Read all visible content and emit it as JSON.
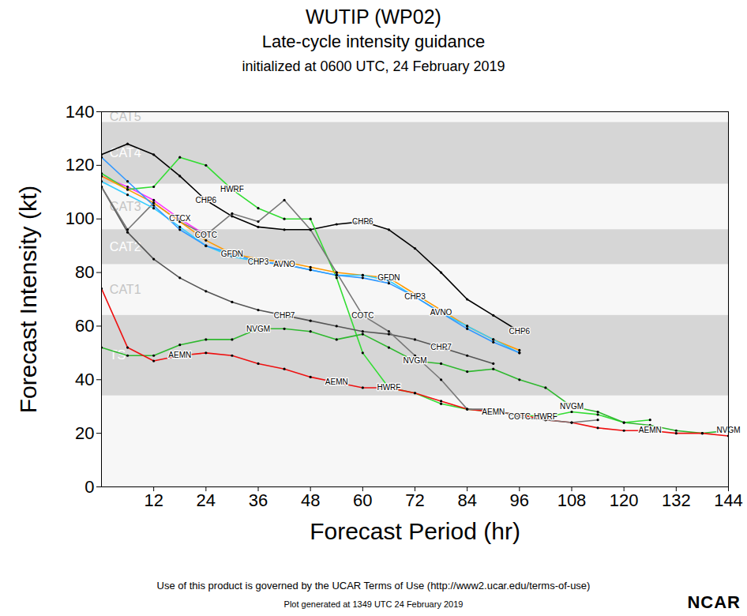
{
  "chart_data": {
    "type": "line",
    "title": "WUTIP (WP02)",
    "subtitle": "Late-cycle intensity guidance",
    "initialization": "initialized at 0600 UTC, 24 February 2019",
    "footer": [
      "Use of this product is governed by the UCAR Terms of Use (http://www2.ucar.edu/terms-of-use)",
      "Plot generated at 1349 UTC  24 February 2019"
    ],
    "logo": "NCAR",
    "x_label": "Forecast Period (hr)",
    "y_label": "Forecast Intensity (kt)",
    "xlim": [
      0,
      144
    ],
    "xticks": [
      12,
      24,
      36,
      48,
      60,
      72,
      84,
      96,
      108,
      120,
      132,
      144
    ],
    "ylim": [
      0,
      140
    ],
    "yticks": [
      0,
      20,
      40,
      60,
      80,
      100,
      120,
      140
    ],
    "grid": false,
    "marker": "dot",
    "bands": [
      {
        "label": "TS",
        "from": 34,
        "to": 64,
        "shaded": true
      },
      {
        "label": "CAT1",
        "from": 64,
        "to": 83,
        "shaded": false
      },
      {
        "label": "CAT2",
        "from": 83,
        "to": 96,
        "shaded": true
      },
      {
        "label": "CAT3",
        "from": 96,
        "to": 113,
        "shaded": false
      },
      {
        "label": "CAT4",
        "from": 113,
        "to": 136,
        "shaded": true
      },
      {
        "label": "CAT5",
        "from": 136,
        "to": 140,
        "shaded": false
      }
    ],
    "x": [
      0,
      6,
      12,
      18,
      24,
      30,
      36,
      42,
      48,
      54,
      60,
      66,
      72,
      78,
      84,
      90,
      96,
      102,
      108,
      114,
      120,
      126,
      132,
      138,
      144
    ],
    "series": [
      {
        "name": "CTCX",
        "color": "#ff33ff",
        "values": [
          116,
          112,
          107,
          100,
          94,
          null,
          null,
          null,
          null,
          null,
          null,
          null,
          null,
          null,
          null,
          null,
          null,
          null,
          null,
          null,
          null,
          null,
          null,
          null,
          null
        ]
      },
      {
        "name": "CHP6",
        "color": "#000000",
        "values": [
          124,
          128,
          124,
          116,
          107,
          101,
          97,
          96,
          96,
          98,
          99,
          96,
          89,
          80,
          70,
          64,
          58,
          null,
          null,
          null,
          null,
          null,
          null,
          null,
          null
        ]
      },
      {
        "name": "HWRF",
        "color": "#33dd33",
        "values": [
          117,
          111,
          112,
          123,
          120,
          111,
          104,
          100,
          100,
          78,
          50,
          37,
          35,
          31,
          29,
          28,
          27,
          26,
          28,
          27,
          24,
          25,
          null,
          null,
          null
        ]
      },
      {
        "name": "NVGM",
        "color": "#2fb82f",
        "values": [
          52,
          49,
          49,
          53,
          55,
          55,
          59,
          59,
          58,
          55,
          57,
          52,
          47,
          46,
          43,
          44,
          40,
          37,
          30,
          28,
          24,
          23,
          21,
          20,
          21
        ]
      },
      {
        "name": "CHP7",
        "color": "#555555",
        "values": [
          112,
          95,
          85,
          78,
          73,
          69,
          66,
          64,
          62,
          60,
          58,
          57,
          55,
          52,
          49,
          46,
          null,
          null,
          null,
          null,
          null,
          null,
          null,
          null,
          null
        ]
      },
      {
        "name": "AEMN",
        "color": "#ee1111",
        "values": [
          74,
          52,
          47,
          49,
          50,
          49,
          46,
          44,
          41,
          39,
          37,
          37,
          35,
          32,
          29,
          28,
          27,
          25,
          24,
          22,
          21,
          21,
          20,
          20,
          19
        ]
      },
      {
        "name": "COTC",
        "color": "#777777",
        "values": [
          112,
          96,
          106,
          99,
          94,
          102,
          99,
          107,
          96,
          80,
          64,
          58,
          49,
          40,
          29,
          29,
          26,
          25,
          24,
          25,
          null,
          null,
          null,
          null,
          null
        ]
      },
      {
        "name": "GFDN",
        "color": "#ff9900",
        "values": [
          116,
          111,
          106,
          99,
          92,
          87,
          85,
          84,
          82,
          80,
          79,
          78,
          72,
          66,
          60,
          55,
          51,
          null,
          null,
          null,
          null,
          null,
          null,
          null,
          null
        ]
      },
      {
        "name": "CHP3",
        "color": "#33ccff",
        "values": [
          114,
          109,
          104,
          97,
          90,
          86,
          84,
          83,
          81,
          79,
          79,
          77,
          71,
          65,
          60,
          55,
          50,
          null,
          null,
          null,
          null,
          null,
          null,
          null,
          null
        ]
      },
      {
        "name": "AVNO",
        "color": "#3399ff",
        "values": [
          123,
          114,
          105,
          96,
          90,
          87,
          84,
          83,
          81,
          79,
          78,
          76,
          71,
          65,
          59,
          54,
          50,
          null,
          null,
          null,
          null,
          null,
          null,
          null,
          null
        ]
      }
    ]
  }
}
